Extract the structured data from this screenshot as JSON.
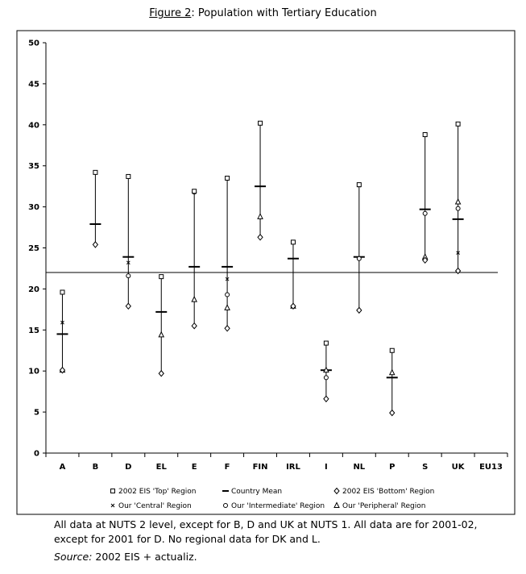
{
  "title": {
    "figure_label": "Figure 2",
    "separator": ":",
    "text": " Population with Tertiary Education"
  },
  "notes": "All data at NUTS 2 level, except for B, D and UK at NUTS 1. All data are for 2001-02, except for 2001 for D. No regional data for DK and L.",
  "source": {
    "label": "Source:",
    "text": " 2002 EIS + actualiz."
  },
  "chart_data": {
    "type": "range-marker",
    "categories": [
      "A",
      "B",
      "D",
      "EL",
      "E",
      "F",
      "FIN",
      "IRL",
      "I",
      "NL",
      "P",
      "S",
      "UK",
      "EU13"
    ],
    "ylim": [
      0,
      50
    ],
    "yticks": [
      0,
      5,
      10,
      15,
      20,
      25,
      30,
      35,
      40,
      45,
      50
    ],
    "reference_line": 22,
    "grid": false,
    "legend_placement": "bottom",
    "series": [
      {
        "name": "2002 EIS 'Top' Region",
        "marker": "square",
        "values": [
          19.6,
          34.2,
          33.7,
          21.5,
          31.9,
          33.5,
          40.2,
          25.7,
          13.4,
          32.7,
          12.5,
          38.8,
          40.1,
          null
        ]
      },
      {
        "name": "Country Mean",
        "marker": "dash",
        "values": [
          14.5,
          27.9,
          23.9,
          17.2,
          22.7,
          22.7,
          32.5,
          23.7,
          10.1,
          23.9,
          9.2,
          29.7,
          28.5,
          null
        ]
      },
      {
        "name": "2002 EIS 'Bottom' Region",
        "marker": "diamond",
        "values": [
          10.1,
          25.4,
          17.9,
          9.7,
          15.5,
          15.2,
          26.3,
          17.9,
          6.6,
          17.4,
          4.9,
          23.5,
          22.2,
          null
        ]
      },
      {
        "name": "Our 'Central' Region",
        "marker": "x",
        "values": [
          15.9,
          null,
          23.2,
          null,
          null,
          21.2,
          null,
          null,
          null,
          32.6,
          null,
          null,
          24.4,
          null
        ]
      },
      {
        "name": "Our 'Intermediate' Region",
        "marker": "circle",
        "values": [
          null,
          null,
          21.6,
          null,
          31.8,
          19.3,
          null,
          null,
          9.2,
          23.7,
          null,
          29.2,
          29.8,
          null
        ]
      },
      {
        "name": "Our 'Peripheral' Region",
        "marker": "triangle",
        "values": [
          10.1,
          null,
          null,
          14.4,
          18.7,
          17.7,
          28.8,
          17.9,
          10.1,
          null,
          9.8,
          23.9,
          30.6,
          null
        ]
      }
    ]
  }
}
